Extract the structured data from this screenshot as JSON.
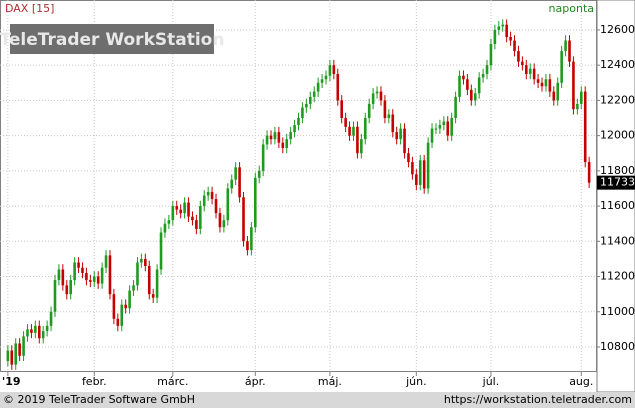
{
  "chart_data": {
    "type": "candlestick",
    "title": "DAX [15]",
    "interval": "naponta",
    "watermark": "TeleTrader WorkStation",
    "up_color": "#1e9b1e",
    "down_color": "#c40000",
    "grid": true,
    "xlim": [
      -2,
      150
    ],
    "xticks": [
      {
        "value": 0,
        "label": "'19"
      },
      {
        "value": 22,
        "label": "febr."
      },
      {
        "value": 42,
        "label": "márc."
      },
      {
        "value": 63,
        "label": "ápr."
      },
      {
        "value": 82,
        "label": "máj."
      },
      {
        "value": 104,
        "label": "jún."
      },
      {
        "value": 123,
        "label": "júl."
      },
      {
        "value": 146,
        "label": "aug."
      }
    ],
    "ylim": [
      10658,
      12770
    ],
    "yticks": [
      10800,
      11000,
      11200,
      11400,
      11600,
      11800,
      12000,
      12200,
      12400,
      12600
    ],
    "open": [
      10720,
      10780,
      10700,
      10820,
      10750,
      10860,
      10900,
      10880,
      10920,
      10850,
      10890,
      10920,
      11000,
      11180,
      11240,
      11150,
      11100,
      11180,
      11280,
      11250,
      11220,
      11180,
      11170,
      11200,
      11160,
      11250,
      11320,
      11100,
      10960,
      10920,
      11040,
      11020,
      11120,
      11150,
      11280,
      11300,
      11260,
      11100,
      11080,
      11240,
      11450,
      11500,
      11520,
      11600,
      11580,
      11560,
      11620,
      11540,
      11520,
      11470,
      11600,
      11660,
      11680,
      11640,
      11560,
      11480,
      11520,
      11700,
      11750,
      11820,
      11650,
      11400,
      11350,
      11480,
      11760,
      11800,
      11950,
      12000,
      11980,
      12020,
      11960,
      11930,
      11980,
      12020,
      12060,
      12100,
      12160,
      12180,
      12220,
      12250,
      12300,
      12320,
      12340,
      12400,
      12350,
      12200,
      12100,
      12050,
      12000,
      12050,
      11900,
      11980,
      12100,
      12180,
      12240,
      12250,
      12200,
      12100,
      12120,
      12020,
      11980,
      12040,
      11900,
      11850,
      11780,
      11720,
      11860,
      11700,
      11960,
      12040,
      12040,
      12060,
      12080,
      12000,
      12100,
      12220,
      12340,
      12320,
      12260,
      12200,
      12240,
      12330,
      12350,
      12400,
      12520,
      12600,
      12620,
      12630,
      12560,
      12540,
      12480,
      12420,
      12400,
      12350,
      12380,
      12320,
      12300,
      12280,
      12320,
      12250,
      12200,
      12300,
      12480,
      12540,
      12420,
      12150,
      12180,
      12250,
      11850
    ],
    "high": [
      10810,
      10810,
      10850,
      10850,
      10890,
      10930,
      10930,
      10950,
      10950,
      10920,
      10950,
      11030,
      11210,
      11270,
      11270,
      11180,
      11210,
      11310,
      11310,
      11280,
      11250,
      11210,
      11230,
      11230,
      11280,
      11350,
      11350,
      11130,
      10990,
      11070,
      11070,
      11150,
      11180,
      11310,
      11330,
      11330,
      11290,
      11130,
      11270,
      11480,
      11530,
      11550,
      11630,
      11630,
      11610,
      11650,
      11650,
      11570,
      11550,
      11630,
      11690,
      11710,
      11710,
      11670,
      11590,
      11550,
      11730,
      11780,
      11850,
      11850,
      11680,
      11430,
      11510,
      11790,
      11830,
      11980,
      12030,
      12030,
      12050,
      12050,
      11990,
      12010,
      12050,
      12090,
      12130,
      12190,
      12210,
      12250,
      12280,
      12330,
      12350,
      12370,
      12430,
      12430,
      12380,
      12230,
      12130,
      12080,
      12080,
      12080,
      12010,
      12130,
      12210,
      12270,
      12280,
      12280,
      12230,
      12150,
      12150,
      12050,
      12070,
      12070,
      11930,
      11880,
      11810,
      11890,
      11890,
      11990,
      12070,
      12070,
      12090,
      12110,
      12110,
      12130,
      12250,
      12370,
      12370,
      12350,
      12290,
      12270,
      12360,
      12380,
      12430,
      12550,
      12630,
      12650,
      12660,
      12660,
      12590,
      12570,
      12510,
      12450,
      12430,
      12410,
      12410,
      12350,
      12330,
      12350,
      12350,
      12280,
      12330,
      12510,
      12570,
      12570,
      12450,
      12210,
      12280,
      12280,
      11880
    ],
    "low": [
      10690,
      10670,
      10670,
      10720,
      10720,
      10830,
      10850,
      10850,
      10820,
      10820,
      10860,
      10890,
      10970,
      11150,
      11120,
      11070,
      11070,
      11150,
      11220,
      11190,
      11150,
      11140,
      11140,
      11130,
      11130,
      11220,
      11070,
      10930,
      10890,
      10890,
      10990,
      10990,
      11090,
      11120,
      11250,
      11230,
      11070,
      11050,
      11050,
      11210,
      11420,
      11470,
      11490,
      11550,
      11530,
      11530,
      11510,
      11490,
      11440,
      11440,
      11570,
      11630,
      11610,
      11530,
      11450,
      11450,
      11490,
      11670,
      11720,
      11620,
      11370,
      11320,
      11320,
      11450,
      11730,
      11770,
      11920,
      11950,
      11950,
      11930,
      11900,
      11900,
      11950,
      11990,
      12030,
      12070,
      12130,
      12150,
      12190,
      12220,
      12270,
      12290,
      12310,
      12320,
      12170,
      12070,
      12020,
      11970,
      11970,
      11870,
      11870,
      11950,
      12070,
      12150,
      12210,
      12170,
      12070,
      12070,
      11990,
      11950,
      11950,
      11870,
      11820,
      11750,
      11690,
      11690,
      11670,
      11670,
      11930,
      12010,
      12010,
      12030,
      11970,
      11970,
      12070,
      12190,
      12290,
      12230,
      12170,
      12170,
      12210,
      12300,
      12320,
      12370,
      12490,
      12570,
      12590,
      12530,
      12510,
      12450,
      12390,
      12370,
      12320,
      12320,
      12290,
      12270,
      12250,
      12250,
      12220,
      12170,
      12170,
      12270,
      12450,
      12390,
      12120,
      12120,
      12150,
      11820,
      11703
    ],
    "close": [
      10780,
      10700,
      10820,
      10750,
      10860,
      10900,
      10880,
      10920,
      10850,
      10890,
      10920,
      11000,
      11180,
      11240,
      11150,
      11100,
      11180,
      11280,
      11250,
      11220,
      11180,
      11170,
      11200,
      11160,
      11250,
      11320,
      11100,
      10960,
      10920,
      11040,
      11020,
      11120,
      11150,
      11280,
      11300,
      11260,
      11100,
      11080,
      11240,
      11450,
      11500,
      11520,
      11600,
      11580,
      11560,
      11620,
      11540,
      11520,
      11470,
      11600,
      11660,
      11680,
      11640,
      11560,
      11480,
      11520,
      11700,
      11750,
      11820,
      11650,
      11400,
      11350,
      11480,
      11760,
      11800,
      11950,
      12000,
      11980,
      12020,
      11960,
      11930,
      11980,
      12020,
      12060,
      12100,
      12160,
      12180,
      12220,
      12250,
      12300,
      12320,
      12340,
      12400,
      12350,
      12200,
      12100,
      12050,
      12000,
      12050,
      11900,
      11980,
      12100,
      12180,
      12240,
      12250,
      12200,
      12100,
      12120,
      12020,
      11980,
      12040,
      11900,
      11850,
      11780,
      11720,
      11860,
      11700,
      11960,
      12040,
      12040,
      12060,
      12080,
      12000,
      12100,
      12220,
      12340,
      12320,
      12260,
      12200,
      12240,
      12330,
      12350,
      12400,
      12520,
      12600,
      12620,
      12630,
      12560,
      12540,
      12480,
      12420,
      12400,
      12350,
      12380,
      12320,
      12300,
      12280,
      12320,
      12250,
      12200,
      12300,
      12480,
      12540,
      12420,
      12150,
      12180,
      12250,
      11850,
      11733
    ]
  },
  "footer": {
    "copyright": "© 2019 TeleTrader Software GmbH",
    "url": "https://workstation.teletrader.com"
  }
}
